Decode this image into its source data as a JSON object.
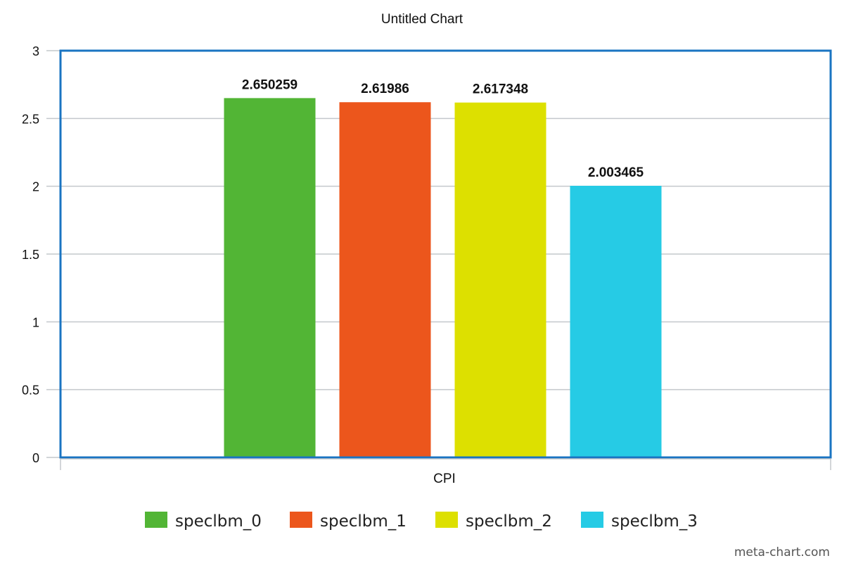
{
  "watermark": "meta-chart.com",
  "chart_data": {
    "type": "bar",
    "title": "Untitled Chart",
    "xlabel": "",
    "ylabel": "",
    "categories": [
      "CPI"
    ],
    "series": [
      {
        "name": "speclbm_0",
        "values": [
          2.650259
        ],
        "label": "2.650259",
        "color": "#52b535"
      },
      {
        "name": "speclbm_1",
        "values": [
          2.61986
        ],
        "label": "2.61986",
        "color": "#ec561c"
      },
      {
        "name": "speclbm_2",
        "values": [
          2.617348
        ],
        "label": "2.617348",
        "color": "#dde000"
      },
      {
        "name": "speclbm_3",
        "values": [
          2.003465
        ],
        "label": "2.003465",
        "color": "#26cbe5"
      }
    ],
    "ylim": [
      0,
      3
    ],
    "yticks": [
      "0",
      "0.5",
      "1",
      "1.5",
      "2",
      "2.5",
      "3"
    ],
    "grid": true,
    "legend_position": "bottom",
    "plot_border_color": "#1a74c2",
    "grid_color": "#c4c8cc"
  }
}
